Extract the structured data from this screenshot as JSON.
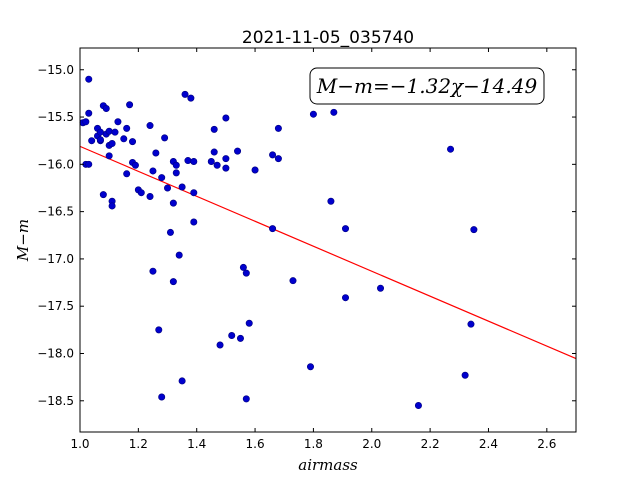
{
  "chart_data": {
    "type": "scatter",
    "title": "2021-11-05_035740",
    "xlabel": "airmass",
    "ylabel": "M−m",
    "xlim": [
      1.0,
      2.7
    ],
    "ylim": [
      -18.83,
      -14.77
    ],
    "y_inverted": true,
    "xticks": [
      1.0,
      1.2,
      1.4,
      1.6,
      1.8,
      2.0,
      2.2,
      2.4,
      2.6
    ],
    "xtick_labels": [
      "1.0",
      "1.2",
      "1.4",
      "1.6",
      "1.8",
      "2.0",
      "2.2",
      "2.4",
      "2.6"
    ],
    "yticks": [
      -15.0,
      -15.5,
      -16.0,
      -16.5,
      -17.0,
      -17.5,
      -18.0,
      -18.5
    ],
    "ytick_labels": [
      "−15.0",
      "−15.5",
      "−16.0",
      "−16.5",
      "−17.0",
      "−17.5",
      "−18.0",
      "−18.5"
    ],
    "annotation": "M−m=−1.32χ−14.49",
    "grid": false,
    "colors": {
      "points": "#0000cd",
      "point_edge": "#000080",
      "fit_line": "#ff0000"
    },
    "fit": {
      "slope": -1.32,
      "intercept": -14.49
    },
    "points": [
      {
        "x": 1.01,
        "y": -15.56
      },
      {
        "x": 1.02,
        "y": -15.55
      },
      {
        "x": 1.02,
        "y": -16.0
      },
      {
        "x": 1.03,
        "y": -15.1
      },
      {
        "x": 1.03,
        "y": -16.0
      },
      {
        "x": 1.03,
        "y": -15.46
      },
      {
        "x": 1.04,
        "y": -15.75
      },
      {
        "x": 1.06,
        "y": -15.62
      },
      {
        "x": 1.06,
        "y": -15.7
      },
      {
        "x": 1.07,
        "y": -15.75
      },
      {
        "x": 1.07,
        "y": -15.66
      },
      {
        "x": 1.07,
        "y": -15.74
      },
      {
        "x": 1.08,
        "y": -15.38
      },
      {
        "x": 1.08,
        "y": -16.32
      },
      {
        "x": 1.09,
        "y": -15.41
      },
      {
        "x": 1.09,
        "y": -15.68
      },
      {
        "x": 1.1,
        "y": -15.65
      },
      {
        "x": 1.1,
        "y": -15.8
      },
      {
        "x": 1.1,
        "y": -15.91
      },
      {
        "x": 1.11,
        "y": -15.78
      },
      {
        "x": 1.11,
        "y": -16.39
      },
      {
        "x": 1.11,
        "y": -16.44
      },
      {
        "x": 1.12,
        "y": -15.66
      },
      {
        "x": 1.13,
        "y": -15.55
      },
      {
        "x": 1.15,
        "y": -15.73
      },
      {
        "x": 1.16,
        "y": -15.62
      },
      {
        "x": 1.16,
        "y": -16.1
      },
      {
        "x": 1.17,
        "y": -15.37
      },
      {
        "x": 1.18,
        "y": -15.76
      },
      {
        "x": 1.18,
        "y": -15.98
      },
      {
        "x": 1.19,
        "y": -16.01
      },
      {
        "x": 1.2,
        "y": -16.27
      },
      {
        "x": 1.21,
        "y": -16.3
      },
      {
        "x": 1.24,
        "y": -15.59
      },
      {
        "x": 1.24,
        "y": -16.34
      },
      {
        "x": 1.25,
        "y": -17.13
      },
      {
        "x": 1.25,
        "y": -16.07
      },
      {
        "x": 1.26,
        "y": -15.88
      },
      {
        "x": 1.27,
        "y": -17.75
      },
      {
        "x": 1.28,
        "y": -18.46
      },
      {
        "x": 1.28,
        "y": -16.14
      },
      {
        "x": 1.29,
        "y": -15.72
      },
      {
        "x": 1.3,
        "y": -16.25
      },
      {
        "x": 1.31,
        "y": -16.72
      },
      {
        "x": 1.32,
        "y": -16.41
      },
      {
        "x": 1.32,
        "y": -17.24
      },
      {
        "x": 1.32,
        "y": -15.97
      },
      {
        "x": 1.33,
        "y": -16.09
      },
      {
        "x": 1.33,
        "y": -16.01
      },
      {
        "x": 1.34,
        "y": -16.96
      },
      {
        "x": 1.35,
        "y": -16.24
      },
      {
        "x": 1.35,
        "y": -18.29
      },
      {
        "x": 1.36,
        "y": -15.26
      },
      {
        "x": 1.37,
        "y": -15.96
      },
      {
        "x": 1.38,
        "y": -15.3
      },
      {
        "x": 1.39,
        "y": -15.97
      },
      {
        "x": 1.39,
        "y": -16.3
      },
      {
        "x": 1.39,
        "y": -16.61
      },
      {
        "x": 1.45,
        "y": -15.97
      },
      {
        "x": 1.46,
        "y": -15.63
      },
      {
        "x": 1.46,
        "y": -15.87
      },
      {
        "x": 1.47,
        "y": -16.01
      },
      {
        "x": 1.48,
        "y": -17.91
      },
      {
        "x": 1.5,
        "y": -15.94
      },
      {
        "x": 1.5,
        "y": -16.04
      },
      {
        "x": 1.5,
        "y": -15.51
      },
      {
        "x": 1.52,
        "y": -17.81
      },
      {
        "x": 1.54,
        "y": -15.86
      },
      {
        "x": 1.55,
        "y": -17.84
      },
      {
        "x": 1.56,
        "y": -17.09
      },
      {
        "x": 1.57,
        "y": -17.15
      },
      {
        "x": 1.57,
        "y": -18.48
      },
      {
        "x": 1.58,
        "y": -17.68
      },
      {
        "x": 1.6,
        "y": -16.06
      },
      {
        "x": 1.66,
        "y": -16.68
      },
      {
        "x": 1.66,
        "y": -15.9
      },
      {
        "x": 1.68,
        "y": -15.62
      },
      {
        "x": 1.68,
        "y": -15.94
      },
      {
        "x": 1.73,
        "y": -17.23
      },
      {
        "x": 1.79,
        "y": -18.14
      },
      {
        "x": 1.8,
        "y": -15.47
      },
      {
        "x": 1.86,
        "y": -16.39
      },
      {
        "x": 1.87,
        "y": -15.45
      },
      {
        "x": 1.91,
        "y": -17.41
      },
      {
        "x": 1.91,
        "y": -16.68
      },
      {
        "x": 2.03,
        "y": -17.31
      },
      {
        "x": 2.16,
        "y": -18.55
      },
      {
        "x": 2.27,
        "y": -15.84
      },
      {
        "x": 2.32,
        "y": -18.23
      },
      {
        "x": 2.34,
        "y": -17.69
      },
      {
        "x": 2.35,
        "y": -16.69
      }
    ]
  }
}
